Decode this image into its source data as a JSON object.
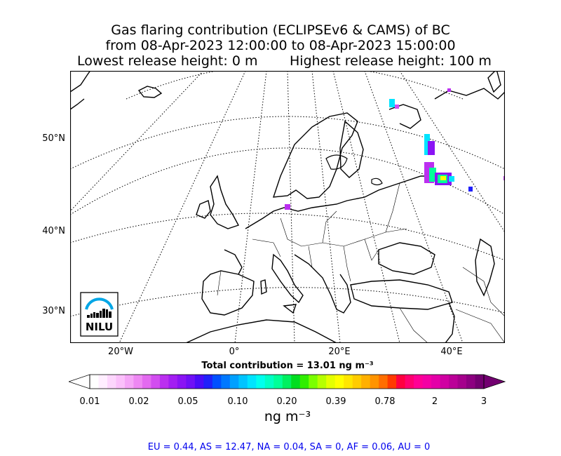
{
  "header": {
    "title_line1": "Gas flaring contribution (ECLIPSEv6 & CAMS) of BC",
    "title_line2": "from 08-Apr-2023 12:00:00 to 08-Apr-2023 15:00:00",
    "lowest_release": "Lowest release height: 0 m",
    "highest_release": "Highest release height: 100 m"
  },
  "map": {
    "lat_labels": [
      "50°N",
      "40°N",
      "30°N"
    ],
    "lon_labels": [
      "20°W",
      "0°",
      "20°E",
      "40°E"
    ],
    "logo_text": "NILU",
    "colors": {
      "land_outline": "#000000",
      "graticule": "#000000",
      "plume_high": "#ffff00",
      "plume_mid": "#00ff80",
      "plume_low": "#8000ff"
    }
  },
  "total_contribution": "Total contribution = 13.01 ng m⁻³",
  "colorbar": {
    "tick_labels": [
      "0.01",
      "0.02",
      "0.05",
      "0.10",
      "0.20",
      "0.39",
      "0.78",
      "2",
      "3"
    ],
    "unit": "ng m⁻³",
    "colors": [
      "#ffffff",
      "#ffeeff",
      "#fdd6fd",
      "#fbc0fb",
      "#f5a6f7",
      "#ee88f3",
      "#e36af0",
      "#d24df0",
      "#bb2ff0",
      "#a31ef2",
      "#8a14f4",
      "#6f10f6",
      "#4a0cf8",
      "#2020fa",
      "#0050ff",
      "#0078ff",
      "#00a0ff",
      "#00c4ff",
      "#00e4ff",
      "#00ffee",
      "#00ffc4",
      "#00ff98",
      "#00f060",
      "#00dd20",
      "#30ee00",
      "#7aff00",
      "#b6ff00",
      "#e4ff00",
      "#ffff00",
      "#ffe600",
      "#ffcc00",
      "#ffb000",
      "#ff9400",
      "#ff6e00",
      "#ff3a00",
      "#ff0040",
      "#ff0070",
      "#ff0095",
      "#f400a4",
      "#e400a8",
      "#d000a2",
      "#bb0098",
      "#a5008c",
      "#8c0080",
      "#720070"
    ]
  },
  "regions_line": "EU = 0.44,  AS = 12.47,  NA = 0.04,  SA = 0,  AF = 0.06,  AU = 0"
}
